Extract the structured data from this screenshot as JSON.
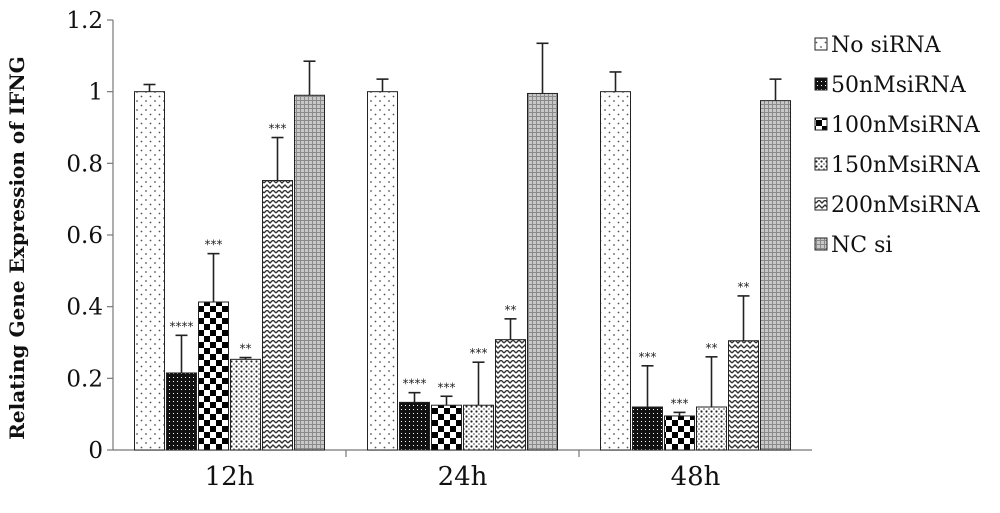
{
  "chart_data": {
    "type": "bar",
    "categories": [
      "12h",
      "24h",
      "48h"
    ],
    "ylabel": "Relating Gene Expression of IFNG",
    "xlabel": "",
    "ylim": [
      0,
      1.2
    ],
    "yticks": [
      "0",
      "0.2",
      "0.4",
      "0.6",
      "0.8",
      "1",
      "1.2"
    ],
    "legend_position": "right",
    "series": [
      {
        "name": "No siRNA",
        "pattern": "sparse-dots",
        "values": [
          1.0,
          1.0,
          1.0
        ],
        "errors": [
          0.02,
          0.035,
          0.055
        ],
        "sig": [
          "",
          "",
          ""
        ]
      },
      {
        "name": "50nMsiRNA",
        "pattern": "dark-dots",
        "values": [
          0.215,
          0.133,
          0.12
        ],
        "errors": [
          0.105,
          0.027,
          0.115
        ],
        "sig": [
          "****",
          "****",
          "***"
        ]
      },
      {
        "name": "100nMsiRNA",
        "pattern": "checker",
        "values": [
          0.413,
          0.125,
          0.095
        ],
        "errors": [
          0.135,
          0.025,
          0.01
        ],
        "sig": [
          "***",
          "***",
          "***"
        ]
      },
      {
        "name": "150nMsiRNA",
        "pattern": "dense-dots",
        "values": [
          0.253,
          0.125,
          0.12
        ],
        "errors": [
          0.005,
          0.12,
          0.14
        ],
        "sig": [
          "**",
          "***",
          "**"
        ]
      },
      {
        "name": "200nMsiRNA",
        "pattern": "zigzag",
        "values": [
          0.752,
          0.308,
          0.305
        ],
        "errors": [
          0.12,
          0.058,
          0.125
        ],
        "sig": [
          "***",
          "**",
          "**"
        ]
      },
      {
        "name": "NC si",
        "pattern": "grid",
        "values": [
          0.99,
          0.995,
          0.975
        ],
        "errors": [
          0.095,
          0.14,
          0.06
        ],
        "sig": [
          "",
          "",
          ""
        ]
      }
    ]
  }
}
